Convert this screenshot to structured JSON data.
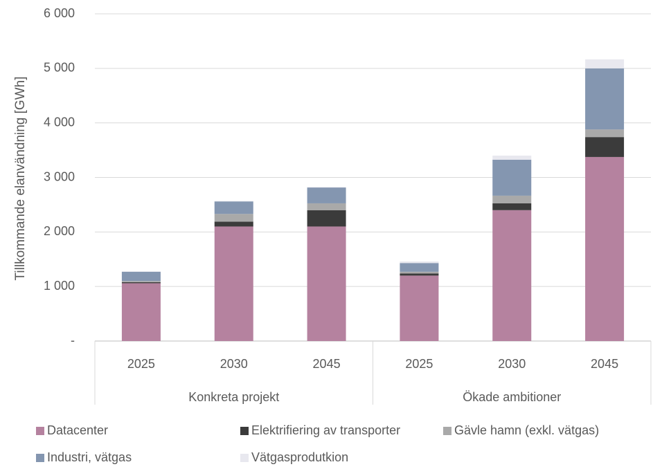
{
  "chart_data": {
    "type": "stacked_bar",
    "y_label": "Tillkommande elanvändning [GWh]",
    "categories": [
      "2025",
      "2030",
      "2045",
      "2025",
      "2030",
      "2045"
    ],
    "groups": [
      "Konkreta projekt",
      "Ökade ambitioner"
    ],
    "series": [
      {
        "name": "Datacenter",
        "color": "#b5829f",
        "values": [
          1060,
          2100,
          2100,
          1200,
          2400,
          3375
        ]
      },
      {
        "name": "Elektrifiering av transporter",
        "color": "#3b3b3b",
        "values": [
          20,
          90,
          300,
          40,
          125,
          365
        ]
      },
      {
        "name": "Gävle hamn (exkl. vätgas)",
        "color": "#a9a9a9",
        "values": [
          20,
          140,
          125,
          30,
          140,
          140
        ]
      },
      {
        "name": "Industri, vätgas",
        "color": "#8496b0",
        "values": [
          170,
          230,
          290,
          160,
          660,
          1120
        ]
      },
      {
        "name": "Vätgasprodutkion",
        "color": "#e8e8ef",
        "values": [
          10,
          10,
          10,
          30,
          75,
          165
        ]
      }
    ],
    "ylim": [
      0,
      6000
    ],
    "yticks": [
      {
        "value": 0,
        "label": "-"
      },
      {
        "value": 1000,
        "label": "1 000"
      },
      {
        "value": 2000,
        "label": "2 000"
      },
      {
        "value": 3000,
        "label": "3 000"
      },
      {
        "value": 4000,
        "label": "4 000"
      },
      {
        "value": 5000,
        "label": "5 000"
      },
      {
        "value": 6000,
        "label": "6 000"
      }
    ],
    "grid": true
  }
}
